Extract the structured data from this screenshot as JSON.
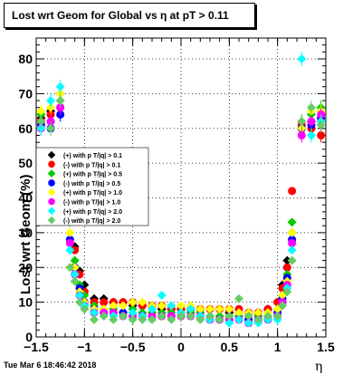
{
  "title": "Lost wrt Geom for Global vs   η at pT > 0.11",
  "footer": "Tue Mar  6 18:46:42 2018",
  "chart_data": {
    "type": "scatter",
    "title": "Lost wrt Geom for Global vs   η at pT > 0.11",
    "xlabel": "η",
    "ylabel": "Lost wrt Geom (%)",
    "xlim": [
      -1.5,
      1.5
    ],
    "ylim": [
      0,
      86
    ],
    "xticks": [
      "−1.5",
      "−1",
      "−0.5",
      "0",
      "0.5",
      "1",
      "1.5"
    ],
    "yticks": [
      "0",
      "10",
      "20",
      "30",
      "40",
      "50",
      "60",
      "70",
      "80"
    ],
    "grid": true,
    "legend_position": "left-middle",
    "series": [
      {
        "name": "(+) with p T/|q| > 0.1",
        "color": "#000000",
        "marker": "diamond",
        "x": [
          -1.45,
          -1.35,
          -1.25,
          -1.15,
          -1.1,
          -1.05,
          -1.0,
          -0.9,
          -0.8,
          -0.7,
          -0.6,
          -0.5,
          -0.4,
          -0.3,
          -0.2,
          -0.1,
          0.0,
          0.1,
          0.2,
          0.3,
          0.4,
          0.5,
          0.6,
          0.7,
          0.8,
          0.9,
          1.0,
          1.05,
          1.1,
          1.15,
          1.25,
          1.35,
          1.45
        ],
        "y": [
          63,
          65,
          70,
          36,
          26,
          19,
          15,
          11,
          11,
          10,
          10,
          9,
          9,
          9,
          8,
          8,
          8,
          8,
          8,
          8,
          8,
          7,
          7,
          7,
          7,
          8,
          10,
          15,
          22,
          30,
          60,
          62,
          62
        ]
      },
      {
        "name": "(-) with p T/|q| > 0.1",
        "color": "#ff0000",
        "marker": "circle",
        "x": [
          -1.45,
          -1.35,
          -1.25,
          -1.15,
          -1.1,
          -1.05,
          -1.0,
          -0.9,
          -0.8,
          -0.7,
          -0.6,
          -0.5,
          -0.4,
          -0.3,
          -0.2,
          -0.1,
          0.0,
          0.1,
          0.2,
          0.3,
          0.4,
          0.5,
          0.6,
          0.7,
          0.8,
          0.9,
          1.0,
          1.05,
          1.1,
          1.15,
          1.25,
          1.35,
          1.45
        ],
        "y": [
          62,
          64,
          66,
          35,
          25,
          18,
          13,
          10,
          10,
          10,
          10,
          10,
          9,
          9,
          9,
          8,
          8,
          8,
          8,
          8,
          8,
          8,
          8,
          7,
          7,
          8,
          10,
          14,
          20,
          42,
          61,
          60,
          58
        ]
      },
      {
        "name": "(+) with p T/|q| > 0.5",
        "color": "#00cc00",
        "marker": "diamond",
        "x": [
          -1.45,
          -1.35,
          -1.25,
          -1.15,
          -1.1,
          -1.05,
          -1.0,
          -0.9,
          -0.8,
          -0.7,
          -0.6,
          -0.5,
          -0.4,
          -0.3,
          -0.2,
          -0.1,
          0.0,
          0.1,
          0.2,
          0.3,
          0.4,
          0.5,
          0.6,
          0.7,
          0.8,
          0.9,
          1.0,
          1.05,
          1.1,
          1.15,
          1.25,
          1.35,
          1.45
        ],
        "y": [
          64,
          62,
          68,
          33,
          22,
          15,
          12,
          9,
          8,
          8,
          7,
          8,
          7,
          7,
          7,
          7,
          7,
          7,
          7,
          6,
          6,
          6,
          6,
          6,
          6,
          6,
          8,
          12,
          18,
          33,
          62,
          64,
          66
        ]
      },
      {
        "name": "(-) with p T/|q| > 0.5",
        "color": "#0000ff",
        "marker": "circle",
        "x": [
          -1.45,
          -1.35,
          -1.25,
          -1.15,
          -1.1,
          -1.05,
          -1.0,
          -0.9,
          -0.8,
          -0.7,
          -0.6,
          -0.5,
          -0.4,
          -0.3,
          -0.2,
          -0.1,
          0.0,
          0.1,
          0.2,
          0.3,
          0.4,
          0.5,
          0.6,
          0.7,
          0.8,
          0.9,
          1.0,
          1.05,
          1.1,
          1.15,
          1.25,
          1.35,
          1.45
        ],
        "y": [
          61,
          60,
          64,
          28,
          20,
          14,
          10,
          8,
          7,
          7,
          7,
          6,
          6,
          6,
          6,
          6,
          6,
          6,
          6,
          5,
          5,
          5,
          5,
          5,
          5,
          5,
          7,
          11,
          17,
          28,
          60,
          61,
          63
        ]
      },
      {
        "name": "(+) with p T/|q| > 1.0",
        "color": "#ffff00",
        "marker": "diamond",
        "x": [
          -1.45,
          -1.35,
          -1.25,
          -1.15,
          -1.1,
          -1.05,
          -1.0,
          -0.9,
          -0.8,
          -0.7,
          -0.6,
          -0.5,
          -0.4,
          -0.3,
          -0.2,
          -0.1,
          0.0,
          0.1,
          0.2,
          0.3,
          0.4,
          0.5,
          0.6,
          0.7,
          0.8,
          0.9,
          1.0,
          1.05,
          1.1,
          1.15,
          1.25,
          1.35,
          1.45
        ],
        "y": [
          65,
          66,
          70,
          30,
          20,
          13,
          10,
          8,
          8,
          9,
          9,
          10,
          10,
          9,
          9,
          9,
          9,
          9,
          8,
          8,
          8,
          8,
          7,
          7,
          7,
          7,
          8,
          12,
          16,
          30,
          60,
          65,
          65
        ]
      },
      {
        "name": "(-) with p T/|q| > 1.0",
        "color": "#ff00ff",
        "marker": "circle",
        "x": [
          -1.45,
          -1.35,
          -1.25,
          -1.15,
          -1.1,
          -1.05,
          -1.0,
          -0.9,
          -0.8,
          -0.7,
          -0.6,
          -0.5,
          -0.4,
          -0.3,
          -0.2,
          -0.1,
          0.0,
          0.1,
          0.2,
          0.3,
          0.4,
          0.5,
          0.6,
          0.7,
          0.8,
          0.9,
          1.0,
          1.05,
          1.1,
          1.15,
          1.25,
          1.35,
          1.45
        ],
        "y": [
          60,
          62,
          66,
          27,
          18,
          12,
          9,
          7,
          7,
          7,
          6,
          6,
          6,
          6,
          6,
          6,
          6,
          6,
          6,
          5,
          5,
          5,
          5,
          4,
          5,
          5,
          6,
          10,
          15,
          27,
          58,
          62,
          64
        ]
      },
      {
        "name": "(+) with p T/|q| > 2.0",
        "color": "#00ffff",
        "marker": "diamond",
        "x": [
          -1.45,
          -1.35,
          -1.25,
          -1.15,
          -1.1,
          -1.05,
          -1.0,
          -0.9,
          -0.8,
          -0.7,
          -0.6,
          -0.5,
          -0.4,
          -0.3,
          -0.2,
          -0.1,
          0.0,
          0.1,
          0.2,
          0.3,
          0.4,
          0.5,
          0.6,
          0.7,
          0.8,
          0.9,
          1.0,
          1.05,
          1.1,
          1.15,
          1.25,
          1.35,
          1.45
        ],
        "y": [
          60,
          68,
          72,
          25,
          18,
          12,
          9,
          7,
          6,
          6,
          6,
          7,
          6,
          8,
          12,
          9,
          7,
          8,
          6,
          5,
          5,
          4,
          5,
          4,
          4,
          5,
          5,
          9,
          14,
          25,
          80,
          58,
          62
        ]
      },
      {
        "name": "(-) with p T/|q| > 2.0",
        "color": "#66cc66",
        "marker": "diamond",
        "x": [
          -1.45,
          -1.35,
          -1.25,
          -1.15,
          -1.1,
          -1.05,
          -1.0,
          -0.9,
          -0.8,
          -0.7,
          -0.6,
          -0.5,
          -0.4,
          -0.3,
          -0.2,
          -0.1,
          0.0,
          0.1,
          0.2,
          0.3,
          0.4,
          0.5,
          0.6,
          0.7,
          0.8,
          0.9,
          1.0,
          1.05,
          1.1,
          1.15,
          1.25,
          1.35,
          1.45
        ],
        "y": [
          62,
          60,
          68,
          20,
          16,
          10,
          8,
          5,
          6,
          5,
          6,
          5,
          5,
          5,
          6,
          5,
          6,
          6,
          5,
          6,
          5,
          6,
          11,
          6,
          5,
          6,
          6,
          9,
          13,
          22,
          62,
          66,
          61
        ]
      }
    ]
  }
}
